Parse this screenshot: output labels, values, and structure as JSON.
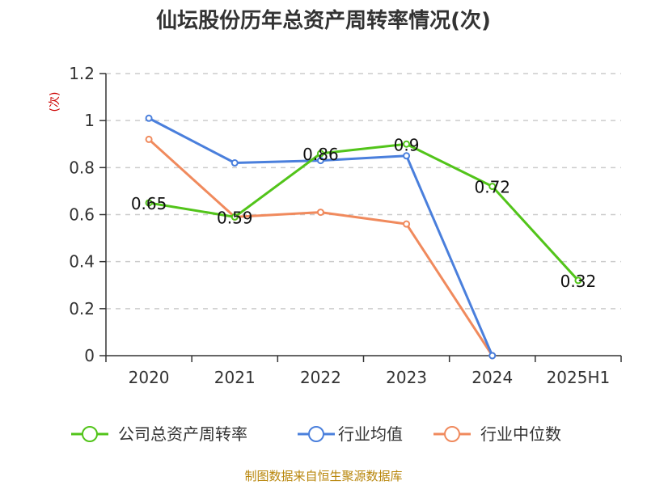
{
  "chart_data": {
    "type": "line",
    "title": "仙坛股份历年总资产周转率情况(次)",
    "ylabel": "(次)",
    "xlabel": "",
    "categories": [
      "2020",
      "2021",
      "2022",
      "2023",
      "2024",
      "2025H1"
    ],
    "ylim": [
      0,
      1.2
    ],
    "yticks": [
      "0",
      "0.2",
      "0.4",
      "0.6",
      "0.8",
      "1",
      "1.2"
    ],
    "grid": true,
    "legend_position": "bottom",
    "series": [
      {
        "name": "公司总资产周转率",
        "color": "#52c41a",
        "values": [
          0.65,
          0.59,
          0.86,
          0.9,
          0.72,
          0.32
        ],
        "labels": [
          "0.65",
          "0.59",
          "0.86",
          "0.9",
          "0.72",
          "0.32"
        ]
      },
      {
        "name": "行业均值",
        "color": "#4a7fdc",
        "values": [
          1.01,
          0.82,
          0.83,
          0.85,
          0.0,
          null
        ],
        "labels": []
      },
      {
        "name": "行业中位数",
        "color": "#f08a5d",
        "values": [
          0.92,
          0.59,
          0.61,
          0.56,
          0.0,
          null
        ],
        "labels": []
      }
    ],
    "source": "制图数据来自恒生聚源数据库"
  }
}
